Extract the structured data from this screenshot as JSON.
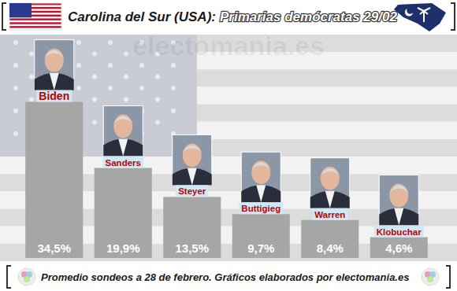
{
  "chart_data": {
    "type": "bar",
    "title": "Carolina del Sur (USA):",
    "subtitle": "Primarias demócratas 29/02",
    "watermark": "electomania.es",
    "source": "Promedio sondeos a 28 de febrero. Gráficos elaborados por electomania.es",
    "categories": [
      "Biden",
      "Sanders",
      "Steyer",
      "Buttigieg",
      "Warren",
      "Klobuchar"
    ],
    "values": [
      34.5,
      19.9,
      13.5,
      9.7,
      8.4,
      4.6
    ],
    "value_labels": [
      "34,5%",
      "19,9%",
      "13,5%",
      "9,7%",
      "8,4%",
      "4,6%"
    ],
    "color": "#a6a6a6",
    "ylim": [
      0,
      40
    ],
    "data_labels": true,
    "tick_labels": false,
    "grid": false
  }
}
